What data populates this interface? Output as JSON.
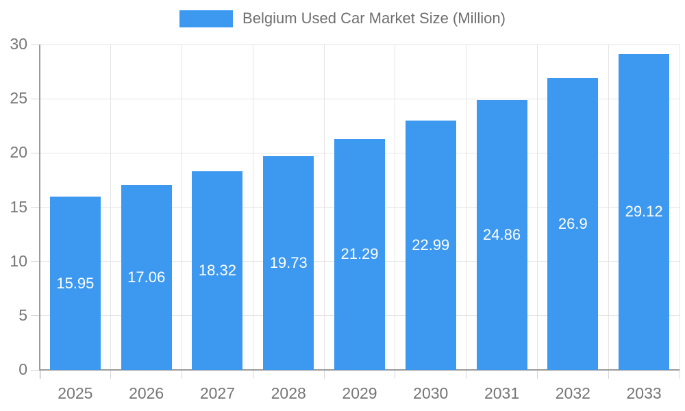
{
  "legend": {
    "label": "Belgium Used Car Market Size (Million)",
    "swatch_color": "#3D99F0"
  },
  "chart_data": {
    "type": "bar",
    "title": "Belgium Used Car Market Size (Million)",
    "series_name": "Belgium Used Car Market Size (Million)",
    "categories": [
      "2025",
      "2026",
      "2027",
      "2028",
      "2029",
      "2030",
      "2031",
      "2032",
      "2033"
    ],
    "values": [
      15.95,
      17.06,
      18.32,
      19.73,
      21.29,
      22.99,
      24.86,
      26.9,
      29.12
    ],
    "value_labels": [
      "15.95",
      "17.06",
      "18.32",
      "19.73",
      "21.29",
      "22.99",
      "24.86",
      "26.9",
      "29.12"
    ],
    "xlabel": "",
    "ylabel": "",
    "ylim": [
      0,
      30
    ],
    "yticks": [
      0,
      5,
      10,
      15,
      20,
      25,
      30
    ],
    "grid": true,
    "legend_position": "top",
    "bar_color": "#3D99F0",
    "value_label_color": "#ffffff",
    "axis_text_color": "#757575",
    "gridline_color": "#e4e4e4",
    "axis_line_color": "#9b9b9b"
  }
}
